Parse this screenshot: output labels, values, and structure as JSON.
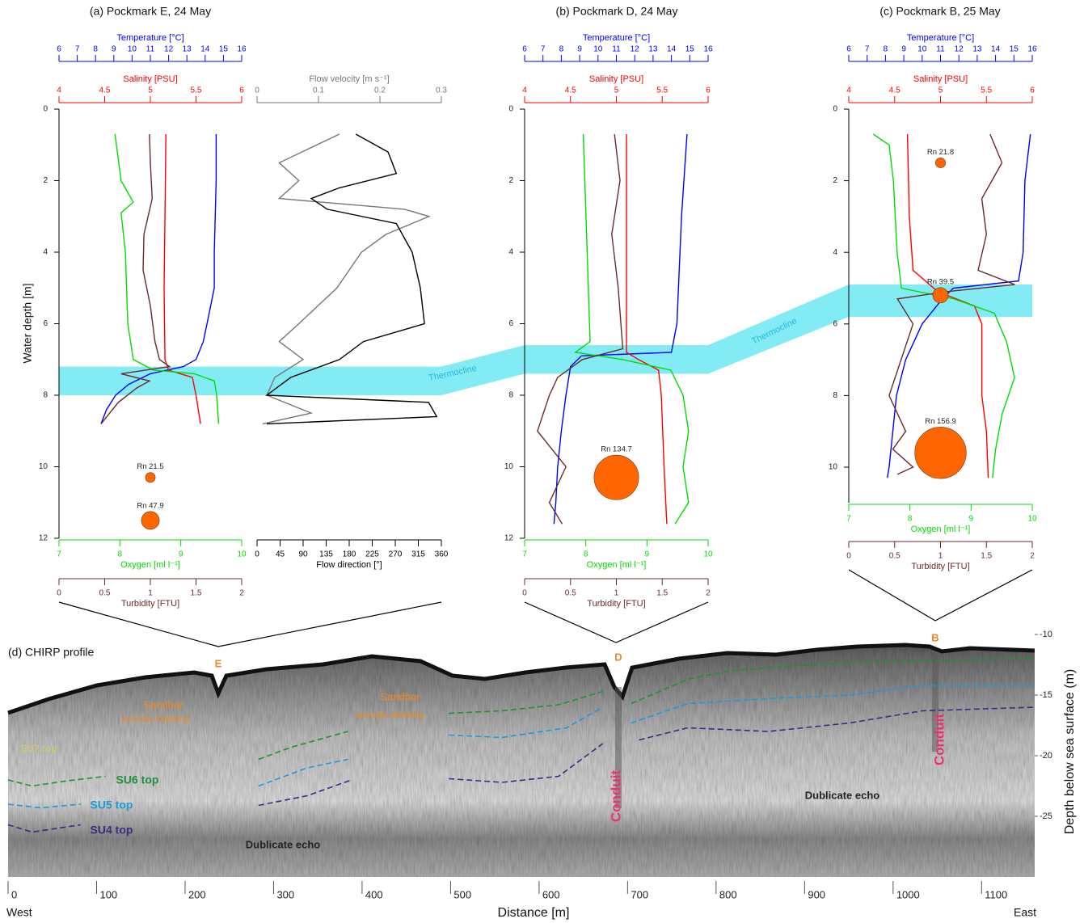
{
  "chart_data": [
    {
      "type": "profile",
      "title": "(a) Pockmark E, 24 May",
      "ylabel": "Water depth [m]",
      "ylim": [
        0,
        12
      ],
      "yticks": [
        0,
        2,
        4,
        6,
        8,
        10,
        12
      ],
      "thermocline": [
        7.2,
        8.0
      ],
      "axes": [
        {
          "label": "Temperature [°C]",
          "color": "#0000ff",
          "lim": [
            6,
            16
          ],
          "ticks": [
            6,
            7,
            8,
            9,
            10,
            11,
            12,
            13,
            14,
            15,
            16
          ],
          "depth": [
            0.7,
            2,
            4,
            5,
            5.5,
            6,
            6.5,
            7,
            7.2,
            7.4,
            7.7,
            8,
            8.4,
            8.8
          ],
          "values": [
            14.6,
            14.6,
            14.5,
            14.5,
            14.3,
            14.1,
            13.9,
            13.5,
            12.8,
            11.0,
            9.8,
            9.1,
            8.6,
            8.3
          ]
        },
        {
          "label": "Salinity [PSU]",
          "color": "#ff0000",
          "lim": [
            4,
            6
          ],
          "ticks": [
            4,
            4.5,
            5,
            5.5,
            6
          ],
          "depth": [
            0.7,
            3,
            5,
            7,
            7.3,
            7.5,
            8,
            8.8
          ],
          "values": [
            5.17,
            5.16,
            5.15,
            5.16,
            5.2,
            5.46,
            5.5,
            5.55
          ]
        },
        {
          "label": "Oxygen [ml l⁻¹]",
          "color": "#00dd00",
          "lim": [
            7,
            10
          ],
          "ticks": [
            7,
            8,
            9,
            10
          ],
          "depth": [
            0.7,
            2,
            2.6,
            2.9,
            4,
            6,
            7,
            7.3,
            7.4,
            7.6,
            8,
            8.8
          ],
          "values": [
            7.92,
            8.02,
            8.22,
            8.02,
            8.09,
            8.13,
            8.22,
            8.55,
            9.22,
            9.55,
            9.59,
            9.62
          ]
        },
        {
          "label": "Turbidity [FTU]",
          "color": "#6b2a2a",
          "lim": [
            0,
            2
          ],
          "ticks": [
            0,
            0.5,
            1,
            1.5,
            2
          ],
          "depth": [
            0.7,
            1.5,
            2.5,
            3.5,
            4.5,
            5.5,
            6.5,
            7,
            7.2,
            7.4,
            7.6,
            7.8,
            8.2,
            8.8
          ],
          "values": [
            0.99,
            1.0,
            1.02,
            0.93,
            0.92,
            1.0,
            1.05,
            1.1,
            1.21,
            0.68,
            0.99,
            0.85,
            0.65,
            0.46
          ]
        },
        {
          "label": "Flow velocity [m s⁻¹]",
          "color": "#777777",
          "lim": [
            0,
            0.3
          ],
          "ticks": [
            0,
            0.1,
            0.2,
            0.3
          ],
          "depth": [
            0.7,
            1.5,
            2,
            2.5,
            2.8,
            3,
            3.5,
            4,
            5,
            6,
            6.5,
            7,
            7.5,
            8,
            8.5,
            8.8
          ],
          "values": [
            0.134,
            0.036,
            0.068,
            0.036,
            0.24,
            0.28,
            0.21,
            0.17,
            0.13,
            0.068,
            0.036,
            0.075,
            0.029,
            0.016,
            0.088,
            0.009
          ]
        },
        {
          "label": "Flow direction [°]",
          "color": "#000000",
          "lim": [
            0,
            360
          ],
          "ticks": [
            0,
            45,
            90,
            135,
            180,
            225,
            270,
            315,
            360
          ],
          "depth": [
            0.7,
            1.2,
            1.8,
            2.2,
            2.5,
            2.8,
            3.2,
            4,
            5,
            6,
            6.5,
            7,
            7.5,
            8,
            8.2,
            8.6,
            8.8
          ],
          "values": [
            193,
            256,
            272,
            161,
            106,
            137,
            272,
            303,
            319,
            327,
            208,
            161,
            66,
            19,
            335,
            351,
            19
          ]
        }
      ],
      "radon": {
        "color": "#ff6600",
        "depth": [
          10.3,
          11.5
        ],
        "values": [
          21.5,
          47.9
        ],
        "value_labels": [
          "Rn 21.5",
          "Rn 47.9"
        ]
      }
    },
    {
      "type": "profile",
      "title": "(b) Pockmark D, 24 May",
      "ylim": [
        0,
        12
      ],
      "yticks": [
        0,
        2,
        4,
        6,
        8,
        10,
        12
      ],
      "thermocline": [
        6.6,
        7.4
      ],
      "axes": [
        {
          "label": "Temperature [°C]",
          "color": "#0000ff",
          "lim": [
            6,
            16
          ],
          "ticks": [
            6,
            7,
            8,
            9,
            10,
            11,
            12,
            13,
            14,
            15,
            16
          ],
          "depth": [
            0.7,
            3,
            6,
            6.8,
            6.9,
            7.2,
            8,
            9,
            10,
            11,
            11.6
          ],
          "values": [
            14.85,
            14.55,
            14.3,
            14.0,
            9.1,
            8.5,
            8.25,
            8.0,
            7.8,
            7.7,
            7.6
          ]
        },
        {
          "label": "Salinity [PSU]",
          "color": "#ff0000",
          "lim": [
            4,
            6
          ],
          "ticks": [
            4,
            4.5,
            5,
            5.5,
            6
          ],
          "depth": [
            0.7,
            6.8,
            7,
            7.3,
            8,
            10,
            11.6
          ],
          "values": [
            5.11,
            5.11,
            5.24,
            5.46,
            5.49,
            5.52,
            5.55
          ]
        },
        {
          "label": "Oxygen [ml l⁻¹]",
          "color": "#00dd00",
          "lim": [
            7,
            10
          ],
          "ticks": [
            7,
            8,
            9,
            10
          ],
          "depth": [
            0.7,
            6.5,
            6.8,
            7,
            7.3,
            8,
            9,
            10,
            11,
            11.6
          ],
          "values": [
            7.96,
            8.07,
            7.83,
            8.6,
            9.39,
            9.59,
            9.68,
            9.59,
            9.68,
            9.46
          ]
        },
        {
          "label": "Turbidity [FTU]",
          "color": "#6b2a2a",
          "lim": [
            0,
            2
          ],
          "ticks": [
            0,
            0.5,
            1,
            1.5,
            2
          ],
          "depth": [
            0.7,
            2,
            3.5,
            5,
            6.7,
            7,
            7.5,
            8,
            9,
            10,
            11,
            11.6
          ],
          "values": [
            0.98,
            1.04,
            0.95,
            1.02,
            1.07,
            0.63,
            0.36,
            0.27,
            0.14,
            0.45,
            0.27,
            0.41
          ]
        }
      ],
      "radon": {
        "color": "#ff6600",
        "depth": [
          10.3
        ],
        "values": [
          134.7
        ],
        "value_labels": [
          "Rn 134.7"
        ]
      }
    },
    {
      "type": "profile",
      "title": "(c) Pockmark B, 25 May",
      "ylim": [
        0,
        11
      ],
      "yticks": [
        0,
        2,
        4,
        6,
        8,
        10
      ],
      "thermocline": [
        4.9,
        5.8
      ],
      "axes": [
        {
          "label": "Temperature [°C]",
          "color": "#0000ff",
          "lim": [
            6,
            16
          ],
          "ticks": [
            6,
            7,
            8,
            9,
            10,
            11,
            12,
            13,
            14,
            15,
            16
          ],
          "depth": [
            0.7,
            2,
            4,
            4.8,
            5,
            5.3,
            6,
            7,
            8,
            9,
            10,
            10.3
          ],
          "values": [
            15.9,
            15.6,
            15.5,
            15.25,
            11.7,
            11.1,
            10.0,
            9.1,
            8.6,
            8.4,
            8.2,
            8.1
          ]
        },
        {
          "label": "Salinity [PSU]",
          "color": "#ff0000",
          "lim": [
            4,
            6
          ],
          "ticks": [
            4,
            4.5,
            5,
            5.5,
            6
          ],
          "depth": [
            0.7,
            3,
            4.5,
            5.1,
            5.5,
            6,
            8,
            9,
            10.3
          ],
          "values": [
            4.64,
            4.66,
            4.7,
            4.97,
            5.37,
            5.45,
            5.45,
            5.5,
            5.52
          ]
        },
        {
          "label": "Oxygen [ml l⁻¹]",
          "color": "#00dd00",
          "lim": [
            7,
            10
          ],
          "ticks": [
            7,
            8,
            9,
            10
          ],
          "depth": [
            0.7,
            1,
            2,
            4,
            5,
            5.3,
            5.7,
            6.5,
            7.5,
            8.5,
            9.5,
            10.3
          ],
          "values": [
            7.4,
            7.66,
            7.73,
            7.79,
            7.86,
            8.72,
            9.38,
            9.58,
            9.71,
            9.51,
            9.4,
            9.35
          ]
        },
        {
          "label": "Turbidity [FTU]",
          "color": "#6b2a2a",
          "lim": [
            0,
            2
          ],
          "ticks": [
            0,
            0.5,
            1,
            1.5,
            2
          ],
          "depth": [
            0.7,
            1.5,
            2.5,
            3.5,
            4.5,
            4.9,
            5.1,
            5.3,
            6,
            7,
            8,
            9,
            9.5,
            10,
            10.2
          ],
          "values": [
            1.54,
            1.67,
            1.45,
            1.5,
            1.41,
            1.81,
            1.06,
            0.53,
            0.7,
            0.57,
            0.44,
            0.62,
            0.48,
            0.7,
            0.53
          ]
        }
      ],
      "radon": {
        "color": "#ff6600",
        "depth": [
          1.5,
          5.2,
          9.6
        ],
        "values": [
          21.8,
          39.5,
          156.9
        ],
        "value_labels": [
          "Rn 21.8",
          "Rn 39.5",
          "Rn 156.9"
        ]
      }
    },
    {
      "type": "section",
      "title": "(d) CHIRP profile",
      "xlabel": "Distance [m]",
      "ylabel": "Depth below sea surface (m)",
      "xlim": [
        0,
        1160
      ],
      "xticks": [
        0,
        100,
        200,
        300,
        400,
        500,
        600,
        700,
        800,
        900,
        1000,
        1100
      ],
      "ylim": [
        -30,
        -9
      ],
      "yticks": [
        -10,
        -15,
        -20,
        -25
      ],
      "end_labels": [
        "West",
        "East"
      ],
      "series": [
        {
          "name": "SU6 top",
          "color": "#1f8f3c",
          "x": [
            0,
            27,
            64,
            110,
            200,
            283,
            320,
            384,
            440,
            498,
            558,
            622,
            672,
            688,
            704,
            768,
            814,
            905,
            996,
            1160
          ],
          "values": [
            -22.0,
            -22.5,
            -22.1,
            -21.7,
            null,
            -20.3,
            -19.3,
            -18.0,
            null,
            -16.5,
            -16.3,
            -15.8,
            -14.7,
            null,
            -15.7,
            -13.7,
            -13.0,
            -12.5,
            -12.2,
            -12.0
          ]
        },
        {
          "name": "SU5 top",
          "color": "#1c9ad8",
          "x": [
            0,
            37,
            82,
            200,
            283,
            338,
            384,
            440,
            498,
            558,
            631,
            672,
            688,
            704,
            768,
            859,
            951,
            1033,
            1160
          ],
          "values": [
            -24.0,
            -24.3,
            -24.0,
            null,
            -22.5,
            -21.0,
            -20.3,
            null,
            -18.3,
            -18.5,
            -17.7,
            -16.0,
            null,
            -17.3,
            -15.7,
            -15.3,
            -15.0,
            -14.2,
            -14.2
          ]
        },
        {
          "name": "SU4 top",
          "color": "#3b2a80",
          "x": [
            0,
            27,
            82,
            200,
            283,
            338,
            388,
            440,
            498,
            558,
            622,
            672,
            688,
            713,
            768,
            859,
            951,
            1033,
            1160
          ],
          "values": [
            -25.7,
            -26.3,
            -25.7,
            null,
            -24.1,
            -23.3,
            -22.0,
            null,
            -21.9,
            -22.2,
            -21.7,
            -19.0,
            null,
            -18.7,
            -17.7,
            -18.0,
            -17.3,
            -16.3,
            -16.0
          ]
        }
      ],
      "annotations": [
        "E",
        "D",
        "B",
        "Sandbar",
        "acoustic blanking",
        "Sandbar",
        "acoustic blanking",
        "SU7 top",
        "Conduit",
        "Conduit",
        "Dublicate echo",
        "Dublicate echo"
      ]
    }
  ],
  "annotations": [
    "Thermocline",
    "Thermocline"
  ]
}
